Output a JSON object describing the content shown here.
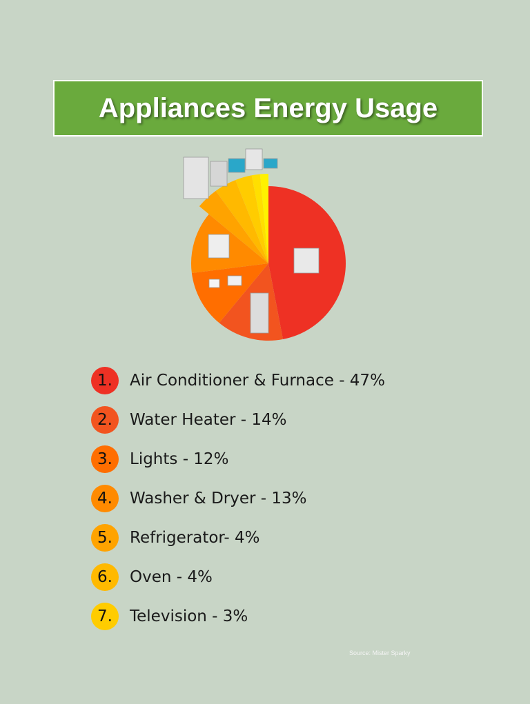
{
  "title": "Appliances Energy Usage",
  "source": "Source: Mister Sparky",
  "chart_data": {
    "type": "pie",
    "title": "Appliances Energy Usage",
    "categories": [
      "Air Conditioner & Furnace",
      "Water Heater",
      "Lights",
      "Washer & Dryer",
      "Refrigerator",
      "Oven",
      "Television"
    ],
    "values": [
      47,
      14,
      12,
      13,
      4,
      4,
      3
    ],
    "unit": "%",
    "colors": [
      "#ee3124",
      "#f2541f",
      "#ff6e00",
      "#ff8a00",
      "#ffa300",
      "#ffb900",
      "#ffcc00"
    ],
    "legend_position": "bottom",
    "legend": [
      {
        "num": "1.",
        "label": "Air Conditioner & Furnace - 47%"
      },
      {
        "num": "2.",
        "label": "Water Heater - 14%"
      },
      {
        "num": "3.",
        "label": "Lights - 12%"
      },
      {
        "num": "4.",
        "label": "Washer & Dryer - 13%"
      },
      {
        "num": "5.",
        "label": "Refrigerator- 4%"
      },
      {
        "num": "6.",
        "label": "Oven - 4%"
      },
      {
        "num": "7.",
        "label": "Television - 3%"
      }
    ]
  }
}
